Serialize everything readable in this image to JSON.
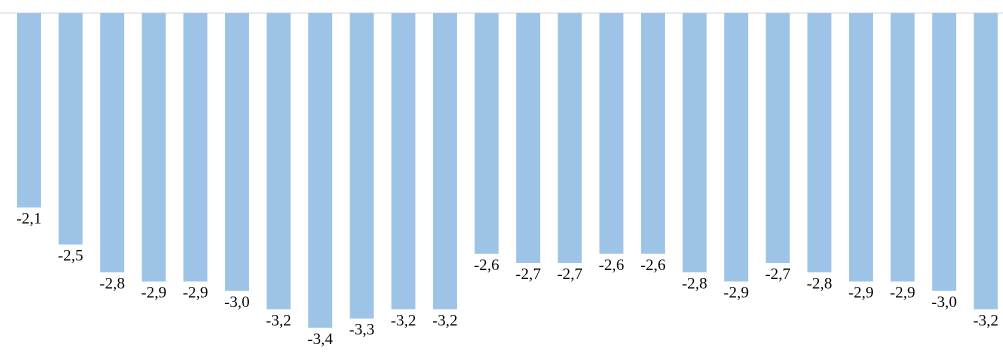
{
  "chart_data": {
    "type": "bar",
    "categories": [],
    "values": [
      -2.1,
      -2.5,
      -2.8,
      -2.9,
      -2.9,
      -3.0,
      -3.2,
      -3.4,
      -3.3,
      -3.2,
      -3.2,
      -2.6,
      -2.7,
      -2.7,
      -2.6,
      -2.6,
      -2.8,
      -2.9,
      -2.7,
      -2.8,
      -2.9,
      -2.9,
      -3.0,
      -3.2
    ],
    "labels": [
      "-2,1",
      "-2,5",
      "-2,8",
      "-2,9",
      "-2,9",
      "-3,0",
      "-3,2",
      "-3,4",
      "-3,3",
      "-3,2",
      "-3,2",
      "-2,6",
      "-2,7",
      "-2,7",
      "-2,6",
      "-2,6",
      "-2,8",
      "-2,9",
      "-2,7",
      "-2,8",
      "-2,9",
      "-2,9",
      "-3,0",
      "-3,2"
    ],
    "title": "",
    "xlabel": "",
    "ylabel": "",
    "ylim": [
      -3.4,
      0
    ],
    "grid": false,
    "legend": "none",
    "bar_color": "#9dc3e6",
    "axis_color": "#d9d9d9",
    "label_color": "#000000"
  }
}
